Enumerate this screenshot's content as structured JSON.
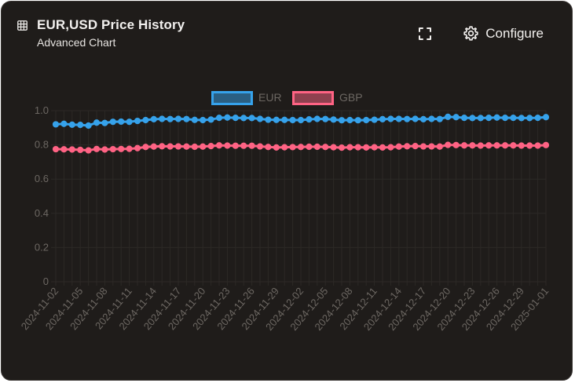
{
  "header": {
    "icon": "table-grid-icon",
    "title": "EUR,USD Price History",
    "subtitle": "Advanced Chart"
  },
  "toolbar": {
    "expand_icon": "fullscreen-expand-icon",
    "configure_icon": "gear-icon",
    "configure_label": "Configure"
  },
  "colors": {
    "card_background": "#1f1c1a",
    "eur": "#36a2eb",
    "gbp": "#ff6384",
    "axis_text": "#6c6762",
    "grid": "#2c2926"
  },
  "chart_data": {
    "type": "line",
    "title": "",
    "xlabel": "",
    "ylabel": "",
    "ylim": [
      0,
      1.0
    ],
    "yticks": [
      "0",
      "0.2",
      "0.4",
      "0.6",
      "0.8",
      "1.0"
    ],
    "legend_position": "top-center",
    "grid": true,
    "x_tick_labels": [
      "2024-11-02",
      "2024-11-05",
      "2024-11-08",
      "2024-11-11",
      "2024-11-14",
      "2024-11-17",
      "2024-11-20",
      "2024-11-23",
      "2024-11-26",
      "2024-11-29",
      "2024-12-02",
      "2024-12-05",
      "2024-12-08",
      "2024-12-11",
      "2024-12-14",
      "2024-12-17",
      "2024-12-20",
      "2024-12-23",
      "2024-12-26",
      "2024-12-29",
      "2025-01-01"
    ],
    "x": [
      "2024-11-02",
      "2024-11-03",
      "2024-11-04",
      "2024-11-05",
      "2024-11-06",
      "2024-11-07",
      "2024-11-08",
      "2024-11-09",
      "2024-11-10",
      "2024-11-11",
      "2024-11-12",
      "2024-11-13",
      "2024-11-14",
      "2024-11-15",
      "2024-11-16",
      "2024-11-17",
      "2024-11-18",
      "2024-11-19",
      "2024-11-20",
      "2024-11-21",
      "2024-11-22",
      "2024-11-23",
      "2024-11-24",
      "2024-11-25",
      "2024-11-26",
      "2024-11-27",
      "2024-11-28",
      "2024-11-29",
      "2024-11-30",
      "2024-12-01",
      "2024-12-02",
      "2024-12-03",
      "2024-12-04",
      "2024-12-05",
      "2024-12-06",
      "2024-12-07",
      "2024-12-08",
      "2024-12-09",
      "2024-12-10",
      "2024-12-11",
      "2024-12-12",
      "2024-12-13",
      "2024-12-14",
      "2024-12-15",
      "2024-12-16",
      "2024-12-17",
      "2024-12-18",
      "2024-12-19",
      "2024-12-20",
      "2024-12-21",
      "2024-12-22",
      "2024-12-23",
      "2024-12-24",
      "2024-12-25",
      "2024-12-26",
      "2024-12-27",
      "2024-12-28",
      "2024-12-29",
      "2024-12-30",
      "2024-12-31",
      "2025-01-01"
    ],
    "series": [
      {
        "name": "EUR",
        "color": "#36a2eb",
        "values": [
          0.92,
          0.923,
          0.918,
          0.917,
          0.913,
          0.93,
          0.928,
          0.935,
          0.936,
          0.935,
          0.94,
          0.945,
          0.95,
          0.952,
          0.951,
          0.952,
          0.951,
          0.946,
          0.945,
          0.948,
          0.958,
          0.96,
          0.958,
          0.957,
          0.957,
          0.952,
          0.947,
          0.946,
          0.946,
          0.945,
          0.945,
          0.949,
          0.952,
          0.951,
          0.948,
          0.944,
          0.945,
          0.944,
          0.945,
          0.947,
          0.95,
          0.952,
          0.952,
          0.951,
          0.952,
          0.95,
          0.952,
          0.951,
          0.964,
          0.962,
          0.958,
          0.957,
          0.957,
          0.958,
          0.96,
          0.958,
          0.958,
          0.957,
          0.957,
          0.958,
          0.962
        ]
      },
      {
        "name": "GBP",
        "color": "#ff6384",
        "values": [
          0.775,
          0.774,
          0.773,
          0.771,
          0.768,
          0.776,
          0.773,
          0.775,
          0.776,
          0.777,
          0.781,
          0.788,
          0.79,
          0.792,
          0.791,
          0.791,
          0.79,
          0.789,
          0.79,
          0.793,
          0.797,
          0.796,
          0.795,
          0.795,
          0.795,
          0.791,
          0.788,
          0.785,
          0.786,
          0.787,
          0.788,
          0.789,
          0.789,
          0.788,
          0.786,
          0.784,
          0.786,
          0.786,
          0.785,
          0.786,
          0.785,
          0.786,
          0.79,
          0.792,
          0.793,
          0.791,
          0.791,
          0.79,
          0.8,
          0.799,
          0.797,
          0.797,
          0.796,
          0.797,
          0.797,
          0.797,
          0.797,
          0.796,
          0.796,
          0.796,
          0.799
        ]
      }
    ]
  }
}
